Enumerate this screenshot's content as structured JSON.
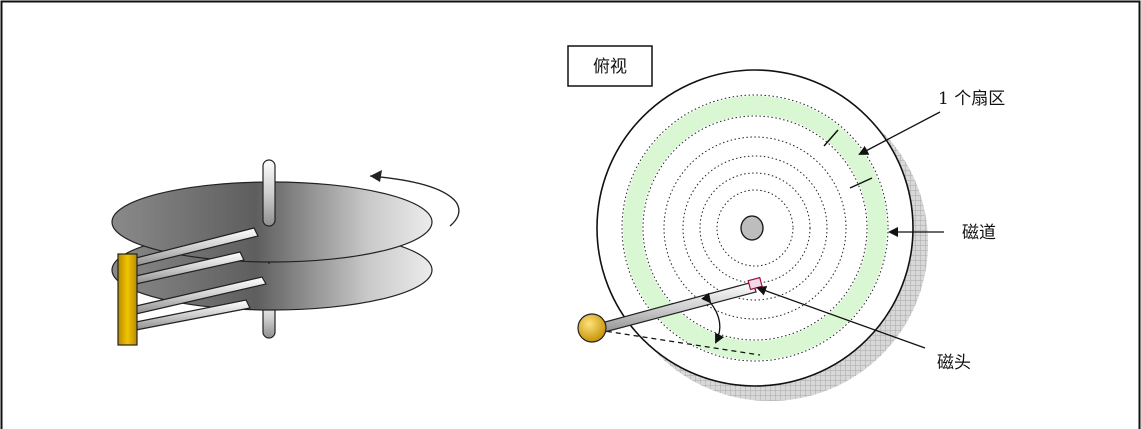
{
  "labels": {
    "top_view": "俯视",
    "sector": "1 个扇区",
    "track": "磁道",
    "head": "磁头"
  },
  "colors": {
    "platter_dark": "#6d6d6d",
    "platter_light": "#e2e2e2",
    "track_green": "#d9f7d3",
    "arm_gold": "#e0b400",
    "pivot_gold": "#d9a400",
    "outline": "#111111"
  }
}
